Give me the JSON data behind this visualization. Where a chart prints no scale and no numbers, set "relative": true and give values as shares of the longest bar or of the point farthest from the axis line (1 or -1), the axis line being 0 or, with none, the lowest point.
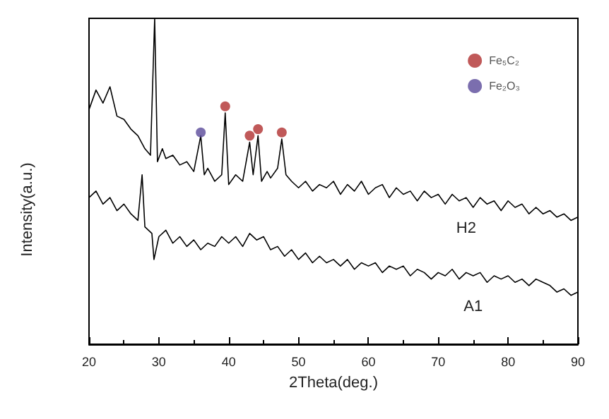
{
  "chart_data": {
    "type": "line",
    "xlabel": "2Theta(deg.)",
    "ylabel": "Intensity(a.u.)",
    "relative": true,
    "xlim": [
      20,
      90
    ],
    "xticks": [
      20,
      30,
      40,
      50,
      60,
      70,
      80,
      90
    ],
    "grid": false,
    "legend": "top right",
    "marker": "none",
    "series": [
      {
        "name": "H2",
        "color": "#000000",
        "x": [
          20,
          21,
          22,
          23,
          24,
          25,
          26,
          27,
          28,
          28.8,
          29.4,
          29.8,
          30.5,
          31,
          32,
          33,
          34,
          35,
          36,
          36.5,
          37,
          38,
          39,
          39.5,
          40,
          41,
          42,
          43,
          43.5,
          44.2,
          44.7,
          45.5,
          46,
          47,
          47.6,
          48.2,
          49,
          50,
          51,
          52,
          53,
          54,
          55,
          56,
          57,
          58,
          59,
          60,
          61,
          62,
          63,
          64,
          65,
          66,
          67,
          68,
          69,
          70,
          71,
          72,
          73,
          74,
          75,
          76,
          77,
          78,
          79,
          80,
          81,
          82,
          83,
          84,
          85,
          86,
          87,
          88,
          89,
          90
        ],
        "values": [
          0.72,
          0.78,
          0.74,
          0.79,
          0.7,
          0.69,
          0.66,
          0.64,
          0.6,
          0.58,
          1,
          0.56,
          0.6,
          0.57,
          0.58,
          0.55,
          0.56,
          0.53,
          0.64,
          0.52,
          0.54,
          0.5,
          0.52,
          0.71,
          0.49,
          0.52,
          0.5,
          0.62,
          0.52,
          0.64,
          0.5,
          0.53,
          0.51,
          0.54,
          0.63,
          0.52,
          0.5,
          0.48,
          0.5,
          0.47,
          0.49,
          0.48,
          0.5,
          0.46,
          0.49,
          0.47,
          0.5,
          0.46,
          0.48,
          0.49,
          0.45,
          0.48,
          0.46,
          0.47,
          0.44,
          0.47,
          0.45,
          0.46,
          0.43,
          0.46,
          0.44,
          0.45,
          0.42,
          0.45,
          0.43,
          0.44,
          0.41,
          0.44,
          0.42,
          0.43,
          0.4,
          0.42,
          0.4,
          0.41,
          0.39,
          0.4,
          0.38,
          0.39
        ]
      },
      {
        "name": "A1",
        "color": "#000000",
        "x": [
          20,
          21,
          22,
          23,
          24,
          25,
          26,
          27,
          27.6,
          28,
          29,
          29.3,
          30,
          31,
          32,
          33,
          34,
          35,
          36,
          37,
          38,
          39,
          40,
          41,
          42,
          43,
          44,
          45,
          46,
          47,
          48,
          49,
          50,
          51,
          52,
          53,
          54,
          55,
          56,
          57,
          58,
          59,
          60,
          61,
          62,
          63,
          64,
          65,
          66,
          67,
          68,
          69,
          70,
          71,
          72,
          73,
          74,
          75,
          76,
          77,
          78,
          79,
          80,
          81,
          82,
          83,
          84,
          85,
          86,
          87,
          88,
          89,
          90
        ],
        "values": [
          0.45,
          0.47,
          0.43,
          0.45,
          0.41,
          0.43,
          0.4,
          0.38,
          0.52,
          0.36,
          0.34,
          0.26,
          0.33,
          0.35,
          0.31,
          0.33,
          0.3,
          0.32,
          0.29,
          0.31,
          0.3,
          0.33,
          0.31,
          0.33,
          0.3,
          0.34,
          0.32,
          0.33,
          0.29,
          0.3,
          0.27,
          0.29,
          0.26,
          0.28,
          0.25,
          0.27,
          0.25,
          0.26,
          0.24,
          0.26,
          0.23,
          0.25,
          0.24,
          0.25,
          0.22,
          0.24,
          0.23,
          0.24,
          0.21,
          0.23,
          0.22,
          0.2,
          0.22,
          0.21,
          0.23,
          0.2,
          0.22,
          0.21,
          0.22,
          0.19,
          0.21,
          0.2,
          0.21,
          0.19,
          0.2,
          0.18,
          0.2,
          0.19,
          0.18,
          0.16,
          0.17,
          0.15,
          0.16
        ]
      },
      {
        "type": "scatter",
        "name": "Fe₅C₂",
        "color": "#b03030",
        "marker": "circle",
        "x": [
          39.5,
          43,
          44.2,
          47.6
        ],
        "values": [
          0.73,
          0.64,
          0.66,
          0.65
        ]
      },
      {
        "type": "scatter",
        "name": "Fe₂O₃",
        "color": "#5a4a9a",
        "marker": "circle",
        "x": [
          36
        ],
        "values": [
          0.65
        ]
      }
    ]
  }
}
